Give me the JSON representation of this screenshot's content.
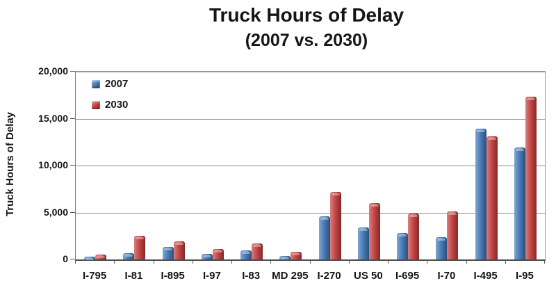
{
  "title": {
    "line1": "Truck Hours of Delay",
    "line2": "(2007 vs. 2030)"
  },
  "chart_data": {
    "type": "bar",
    "title": "Truck Hours of Delay (2007 vs. 2030)",
    "categories": [
      "I-795",
      "I-81",
      "I-895",
      "I-97",
      "I-83",
      "MD 295",
      "I-270",
      "US 50",
      "I-695",
      "I-70",
      "I-495",
      "I-95"
    ],
    "series": [
      {
        "name": "2007",
        "color": "#3E75B5",
        "values": [
          300,
          700,
          1300,
          600,
          1000,
          400,
          4600,
          3400,
          2800,
          2400,
          13900,
          11900
        ]
      },
      {
        "name": "2030",
        "color": "#C23B3C",
        "values": [
          500,
          2500,
          1900,
          1100,
          1700,
          800,
          7200,
          6000,
          4900,
          5100,
          13100,
          17300
        ]
      }
    ],
    "xlabel": "",
    "ylabel": "Truck Hours of Delay",
    "ylim": [
      0,
      20000
    ],
    "yticks": [
      0,
      5000,
      10000,
      15000,
      20000
    ],
    "ytick_labels": [
      "0",
      "5,000",
      "10,000",
      "15,000",
      "20,000"
    ],
    "grid": true,
    "legend_position": "top-left-inside",
    "background": "#ffffff",
    "gridline_color": "#8c8c8c",
    "axis_color": "#4d4d4d"
  }
}
